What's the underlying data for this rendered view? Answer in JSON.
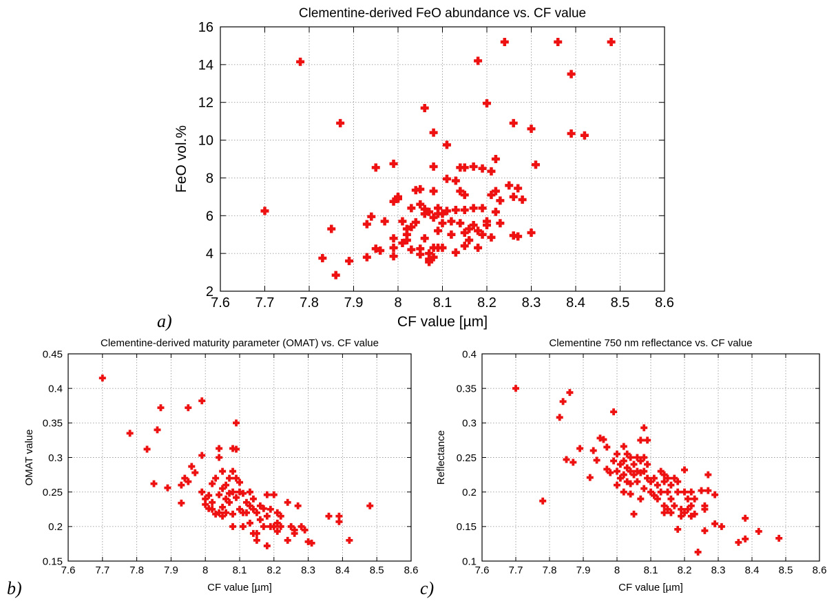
{
  "colors": {
    "marker": "#ee1111",
    "grid": "#9a9a9a",
    "axis": "#000000"
  },
  "panel_labels": [
    "a)",
    "b)",
    "c)"
  ],
  "chart_data": [
    {
      "type": "scatter",
      "title": "Clementine-derived FeO abundance vs. CF value",
      "xlabel": "CF value [µm]",
      "ylabel": "FeO vol.%",
      "xlim": [
        7.6,
        8.6
      ],
      "ylim": [
        2,
        16
      ],
      "xticks": [
        "7.6",
        "7.7",
        "7.8",
        "7.9",
        "8",
        "8.1",
        "8.2",
        "8.3",
        "8.4",
        "8.5",
        "8.6"
      ],
      "yticks": [
        "2",
        "4",
        "6",
        "8",
        "10",
        "12",
        "14",
        "16"
      ],
      "grid": true,
      "marker": "plus",
      "points": [
        [
          7.7,
          6.25
        ],
        [
          7.78,
          14.15
        ],
        [
          7.83,
          3.75
        ],
        [
          7.85,
          5.3
        ],
        [
          7.86,
          2.85
        ],
        [
          7.87,
          10.9
        ],
        [
          7.89,
          3.6
        ],
        [
          7.93,
          3.8
        ],
        [
          7.93,
          5.55
        ],
        [
          7.94,
          5.95
        ],
        [
          7.95,
          8.55
        ],
        [
          7.95,
          4.25
        ],
        [
          7.96,
          4.15
        ],
        [
          7.97,
          5.7
        ],
        [
          7.99,
          8.75
        ],
        [
          7.99,
          4.8
        ],
        [
          7.99,
          4.3
        ],
        [
          7.99,
          3.85
        ],
        [
          7.99,
          6.75
        ],
        [
          8.0,
          6.9
        ],
        [
          8.0,
          7.0
        ],
        [
          8.01,
          5.7
        ],
        [
          8.01,
          4.55
        ],
        [
          8.02,
          4.7
        ],
        [
          8.02,
          5.0
        ],
        [
          8.02,
          5.3
        ],
        [
          8.03,
          4.2
        ],
        [
          8.03,
          5.4
        ],
        [
          8.03,
          6.4
        ],
        [
          8.04,
          7.35
        ],
        [
          8.04,
          5.65
        ],
        [
          8.05,
          7.4
        ],
        [
          8.05,
          6.6
        ],
        [
          8.05,
          4.25
        ],
        [
          8.05,
          3.95
        ],
        [
          8.06,
          6.35
        ],
        [
          8.06,
          6.1
        ],
        [
          8.06,
          11.7
        ],
        [
          8.06,
          4.8
        ],
        [
          8.07,
          4.0
        ],
        [
          8.07,
          3.7
        ],
        [
          8.07,
          3.55
        ],
        [
          8.07,
          6.2
        ],
        [
          8.08,
          10.4
        ],
        [
          8.08,
          8.6
        ],
        [
          8.08,
          7.3
        ],
        [
          8.08,
          5.9
        ],
        [
          8.08,
          4.3
        ],
        [
          8.08,
          3.8
        ],
        [
          8.09,
          6.4
        ],
        [
          8.09,
          6.1
        ],
        [
          8.09,
          5.2
        ],
        [
          8.09,
          4.3
        ],
        [
          8.1,
          6.1
        ],
        [
          8.1,
          5.6
        ],
        [
          8.1,
          4.3
        ],
        [
          8.11,
          9.75
        ],
        [
          8.11,
          7.95
        ],
        [
          8.11,
          6.25
        ],
        [
          8.12,
          5.7
        ],
        [
          8.12,
          5.0
        ],
        [
          8.13,
          7.85
        ],
        [
          8.13,
          6.3
        ],
        [
          8.13,
          4.05
        ],
        [
          8.14,
          8.55
        ],
        [
          8.14,
          7.3
        ],
        [
          8.14,
          5.6
        ],
        [
          8.15,
          8.55
        ],
        [
          8.15,
          7.1
        ],
        [
          8.15,
          5.1
        ],
        [
          8.15,
          4.4
        ],
        [
          8.15,
          6.3
        ],
        [
          8.16,
          4.7
        ],
        [
          8.16,
          5.3
        ],
        [
          8.17,
          8.6
        ],
        [
          8.17,
          6.4
        ],
        [
          8.17,
          5.5
        ],
        [
          8.18,
          14.2
        ],
        [
          8.18,
          5.2
        ],
        [
          8.18,
          4.3
        ],
        [
          8.19,
          6.4
        ],
        [
          8.19,
          5.0
        ],
        [
          8.19,
          8.5
        ],
        [
          8.2,
          11.95
        ],
        [
          8.2,
          5.7
        ],
        [
          8.2,
          5.5
        ],
        [
          8.21,
          7.1
        ],
        [
          8.21,
          8.35
        ],
        [
          8.21,
          4.85
        ],
        [
          8.22,
          9.0
        ],
        [
          8.22,
          7.3
        ],
        [
          8.22,
          6.2
        ],
        [
          8.23,
          6.8
        ],
        [
          8.23,
          5.6
        ],
        [
          8.24,
          15.2
        ],
        [
          8.25,
          7.6
        ],
        [
          8.26,
          10.9
        ],
        [
          8.26,
          7.0
        ],
        [
          8.26,
          4.95
        ],
        [
          8.27,
          7.45
        ],
        [
          8.27,
          4.9
        ],
        [
          8.28,
          6.85
        ],
        [
          8.3,
          10.6
        ],
        [
          8.3,
          5.1
        ],
        [
          8.31,
          8.7
        ],
        [
          8.36,
          15.2
        ],
        [
          8.39,
          13.5
        ],
        [
          8.39,
          10.35
        ],
        [
          8.42,
          10.25
        ],
        [
          8.48,
          15.2
        ]
      ]
    },
    {
      "type": "scatter",
      "title": "Clementine-derived maturity parameter (OMAT) vs. CF value",
      "xlabel": "CF value [µm]",
      "ylabel": "OMAT value",
      "xlim": [
        7.6,
        8.6
      ],
      "ylim": [
        0.15,
        0.45
      ],
      "xticks": [
        "7.6",
        "7.7",
        "7.8",
        "7.9",
        "8",
        "8.1",
        "8.2",
        "8.3",
        "8.4",
        "8.5",
        "8.6"
      ],
      "yticks": [
        "0.15",
        "0.2",
        "0.25",
        "0.3",
        "0.35",
        "0.4",
        "0.45"
      ],
      "grid": true,
      "marker": "plus",
      "points": [
        [
          7.7,
          0.415
        ],
        [
          7.78,
          0.335
        ],
        [
          7.83,
          0.312
        ],
        [
          7.85,
          0.262
        ],
        [
          7.86,
          0.34
        ],
        [
          7.87,
          0.372
        ],
        [
          7.89,
          0.256
        ],
        [
          7.93,
          0.234
        ],
        [
          7.93,
          0.26
        ],
        [
          7.94,
          0.27
        ],
        [
          7.95,
          0.265
        ],
        [
          7.95,
          0.372
        ],
        [
          7.96,
          0.287
        ],
        [
          7.97,
          0.278
        ],
        [
          7.99,
          0.303
        ],
        [
          7.99,
          0.382
        ],
        [
          7.99,
          0.25
        ],
        [
          8.0,
          0.24
        ],
        [
          8.0,
          0.232
        ],
        [
          8.01,
          0.226
        ],
        [
          8.01,
          0.245
        ],
        [
          8.02,
          0.225
        ],
        [
          8.02,
          0.235
        ],
        [
          8.02,
          0.262
        ],
        [
          8.03,
          0.27
        ],
        [
          8.03,
          0.218
        ],
        [
          8.04,
          0.313
        ],
        [
          8.04,
          0.3
        ],
        [
          8.04,
          0.22
        ],
        [
          8.04,
          0.246
        ],
        [
          8.05,
          0.28
        ],
        [
          8.05,
          0.255
        ],
        [
          8.05,
          0.228
        ],
        [
          8.05,
          0.215
        ],
        [
          8.06,
          0.26
        ],
        [
          8.06,
          0.24
        ],
        [
          8.06,
          0.22
        ],
        [
          8.07,
          0.27
        ],
        [
          8.07,
          0.248
        ],
        [
          8.07,
          0.235
        ],
        [
          8.08,
          0.313
        ],
        [
          8.08,
          0.28
        ],
        [
          8.08,
          0.25
        ],
        [
          8.08,
          0.218
        ],
        [
          8.08,
          0.2
        ],
        [
          8.09,
          0.35
        ],
        [
          8.09,
          0.312
        ],
        [
          8.09,
          0.27
        ],
        [
          8.09,
          0.242
        ],
        [
          8.1,
          0.264
        ],
        [
          8.1,
          0.25
        ],
        [
          8.1,
          0.225
        ],
        [
          8.11,
          0.248
        ],
        [
          8.11,
          0.22
        ],
        [
          8.11,
          0.2
        ],
        [
          8.12,
          0.235
        ],
        [
          8.12,
          0.22
        ],
        [
          8.13,
          0.25
        ],
        [
          8.13,
          0.23
        ],
        [
          8.13,
          0.205
        ],
        [
          8.14,
          0.24
        ],
        [
          8.14,
          0.225
        ],
        [
          8.14,
          0.19
        ],
        [
          8.15,
          0.22
        ],
        [
          8.15,
          0.19
        ],
        [
          8.15,
          0.18
        ],
        [
          8.16,
          0.23
        ],
        [
          8.16,
          0.21
        ],
        [
          8.17,
          0.226
        ],
        [
          8.17,
          0.2
        ],
        [
          8.18,
          0.246
        ],
        [
          8.18,
          0.215
        ],
        [
          8.18,
          0.172
        ],
        [
          8.19,
          0.225
        ],
        [
          8.19,
          0.2
        ],
        [
          8.2,
          0.246
        ],
        [
          8.2,
          0.2
        ],
        [
          8.21,
          0.22
        ],
        [
          8.21,
          0.205
        ],
        [
          8.21,
          0.193
        ],
        [
          8.22,
          0.215
        ],
        [
          8.22,
          0.2
        ],
        [
          8.24,
          0.235
        ],
        [
          8.24,
          0.18
        ],
        [
          8.25,
          0.2
        ],
        [
          8.26,
          0.195
        ],
        [
          8.26,
          0.19
        ],
        [
          8.27,
          0.23
        ],
        [
          8.28,
          0.2
        ],
        [
          8.29,
          0.195
        ],
        [
          8.3,
          0.178
        ],
        [
          8.31,
          0.176
        ],
        [
          8.36,
          0.215
        ],
        [
          8.39,
          0.215
        ],
        [
          8.39,
          0.207
        ],
        [
          8.42,
          0.18
        ],
        [
          8.48,
          0.23
        ]
      ]
    },
    {
      "type": "scatter",
      "title": "Clementine 750 nm reflectance vs. CF value",
      "xlabel": "CF value [µm]",
      "ylabel": "Reflectance",
      "xlim": [
        7.6,
        8.6
      ],
      "ylim": [
        0.1,
        0.4
      ],
      "xticks": [
        "7.6",
        "7.7",
        "7.8",
        "7.9",
        "8",
        "8.1",
        "8.2",
        "8.3",
        "8.4",
        "8.5",
        "8.6"
      ],
      "yticks": [
        "0.1",
        "0.15",
        "0.2",
        "0.25",
        "0.3",
        "0.35",
        "0.4"
      ],
      "grid": true,
      "marker": "plus",
      "points": [
        [
          7.7,
          0.35
        ],
        [
          7.78,
          0.187
        ],
        [
          7.83,
          0.308
        ],
        [
          7.84,
          0.331
        ],
        [
          7.85,
          0.247
        ],
        [
          7.86,
          0.344
        ],
        [
          7.87,
          0.243
        ],
        [
          7.89,
          0.263
        ],
        [
          7.92,
          0.221
        ],
        [
          7.93,
          0.26
        ],
        [
          7.94,
          0.246
        ],
        [
          7.95,
          0.278
        ],
        [
          7.96,
          0.276
        ],
        [
          7.97,
          0.233
        ],
        [
          7.97,
          0.265
        ],
        [
          7.98,
          0.228
        ],
        [
          7.99,
          0.316
        ],
        [
          7.99,
          0.245
        ],
        [
          8.0,
          0.255
        ],
        [
          8.0,
          0.23
        ],
        [
          8.0,
          0.21
        ],
        [
          8.01,
          0.24
        ],
        [
          8.01,
          0.22
        ],
        [
          8.02,
          0.266
        ],
        [
          8.02,
          0.245
        ],
        [
          8.02,
          0.225
        ],
        [
          8.02,
          0.2
        ],
        [
          8.03,
          0.255
        ],
        [
          8.03,
          0.235
        ],
        [
          8.03,
          0.215
        ],
        [
          8.04,
          0.25
        ],
        [
          8.04,
          0.23
        ],
        [
          8.04,
          0.212
        ],
        [
          8.04,
          0.197
        ],
        [
          8.05,
          0.24
        ],
        [
          8.05,
          0.225
        ],
        [
          8.05,
          0.168
        ],
        [
          8.06,
          0.25
        ],
        [
          8.06,
          0.23
        ],
        [
          8.06,
          0.215
        ],
        [
          8.07,
          0.275
        ],
        [
          8.07,
          0.245
        ],
        [
          8.07,
          0.228
        ],
        [
          8.07,
          0.19
        ],
        [
          8.08,
          0.293
        ],
        [
          8.08,
          0.25
        ],
        [
          8.08,
          0.23
        ],
        [
          8.08,
          0.205
        ],
        [
          8.09,
          0.275
        ],
        [
          8.09,
          0.24
        ],
        [
          8.09,
          0.22
        ],
        [
          8.1,
          0.215
        ],
        [
          8.1,
          0.2
        ],
        [
          8.11,
          0.195
        ],
        [
          8.11,
          0.22
        ],
        [
          8.12,
          0.21
        ],
        [
          8.12,
          0.19
        ],
        [
          8.13,
          0.23
        ],
        [
          8.13,
          0.2
        ],
        [
          8.14,
          0.225
        ],
        [
          8.14,
          0.215
        ],
        [
          8.14,
          0.18
        ],
        [
          8.14,
          0.17
        ],
        [
          8.15,
          0.22
        ],
        [
          8.15,
          0.2
        ],
        [
          8.15,
          0.175
        ],
        [
          8.16,
          0.21
        ],
        [
          8.16,
          0.19
        ],
        [
          8.16,
          0.17
        ],
        [
          8.17,
          0.22
        ],
        [
          8.17,
          0.18
        ],
        [
          8.18,
          0.215
        ],
        [
          8.18,
          0.2
        ],
        [
          8.18,
          0.146
        ],
        [
          8.19,
          0.175
        ],
        [
          8.19,
          0.165
        ],
        [
          8.2,
          0.232
        ],
        [
          8.2,
          0.2
        ],
        [
          8.2,
          0.17
        ],
        [
          8.21,
          0.19
        ],
        [
          8.21,
          0.175
        ],
        [
          8.22,
          0.2
        ],
        [
          8.22,
          0.18
        ],
        [
          8.22,
          0.165
        ],
        [
          8.23,
          0.19
        ],
        [
          8.23,
          0.168
        ],
        [
          8.24,
          0.113
        ],
        [
          8.25,
          0.202
        ],
        [
          8.26,
          0.18
        ],
        [
          8.26,
          0.144
        ],
        [
          8.26,
          0.175
        ],
        [
          8.27,
          0.225
        ],
        [
          8.27,
          0.202
        ],
        [
          8.29,
          0.196
        ],
        [
          8.29,
          0.154
        ],
        [
          8.31,
          0.15
        ],
        [
          8.36,
          0.127
        ],
        [
          8.38,
          0.132
        ],
        [
          8.38,
          0.162
        ],
        [
          8.42,
          0.143
        ],
        [
          8.48,
          0.133
        ]
      ]
    }
  ]
}
